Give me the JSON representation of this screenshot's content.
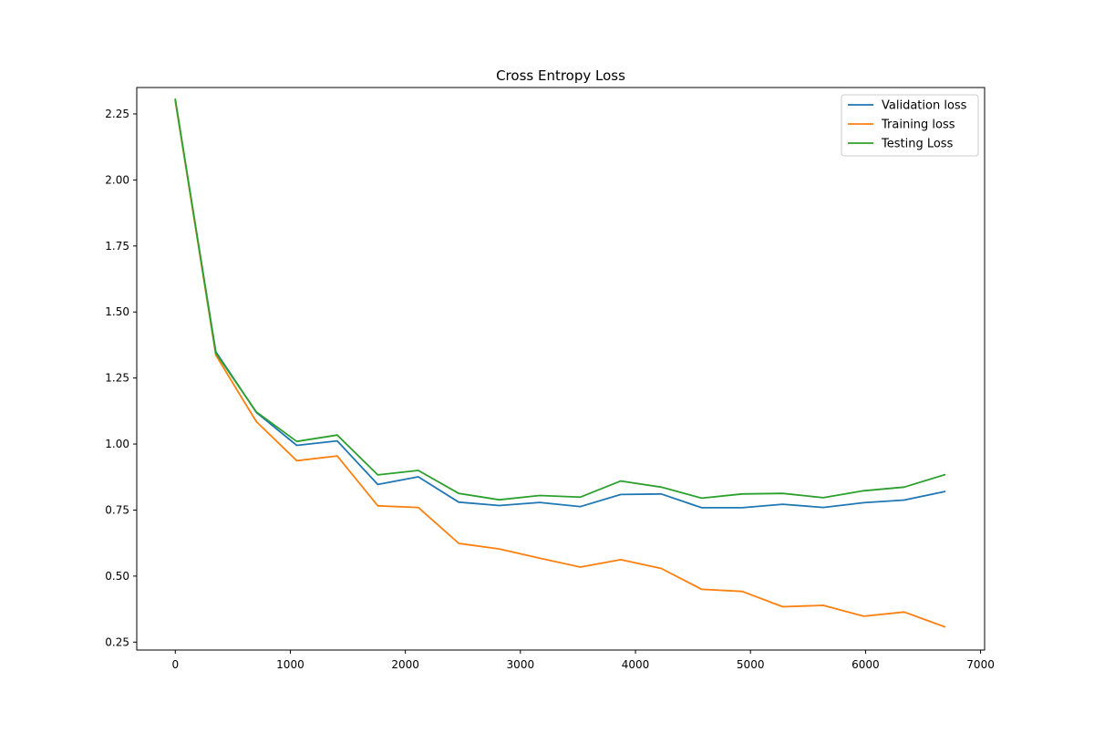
{
  "chart_data": {
    "type": "line",
    "title": "Cross Entropy Loss",
    "xlabel": "",
    "ylabel": "",
    "xlim": [
      -335,
      7035
    ],
    "ylim": [
      0.22,
      2.35
    ],
    "xticks": [
      0,
      1000,
      2000,
      3000,
      4000,
      5000,
      6000,
      7000
    ],
    "yticks": [
      0.25,
      0.5,
      0.75,
      1.0,
      1.25,
      1.5,
      1.75,
      2.0,
      2.25
    ],
    "grid": false,
    "legend_position": "top-right",
    "x": [
      0,
      352,
      704,
      1056,
      1408,
      1760,
      2112,
      2464,
      2816,
      3168,
      3520,
      3872,
      4224,
      4576,
      4928,
      5280,
      5632,
      5984,
      6336,
      6688
    ],
    "series": [
      {
        "name": "Validation loss",
        "color": "#1f77b4",
        "values": [
          2.3,
          1.35,
          1.12,
          0.995,
          1.012,
          0.847,
          0.876,
          0.78,
          0.767,
          0.779,
          0.763,
          0.809,
          0.811,
          0.759,
          0.759,
          0.772,
          0.76,
          0.778,
          0.788,
          0.82
        ]
      },
      {
        "name": "Training loss",
        "color": "#ff7f0e",
        "values": [
          2.3,
          1.337,
          1.085,
          0.937,
          0.955,
          0.766,
          0.76,
          0.624,
          0.603,
          0.568,
          0.534,
          0.562,
          0.529,
          0.45,
          0.442,
          0.384,
          0.389,
          0.348,
          0.364,
          0.308
        ]
      },
      {
        "name": "Testing Loss",
        "color": "#2ca02c",
        "values": [
          2.305,
          1.345,
          1.122,
          1.01,
          1.034,
          0.883,
          0.9,
          0.813,
          0.789,
          0.805,
          0.799,
          0.86,
          0.837,
          0.795,
          0.811,
          0.813,
          0.797,
          0.823,
          0.837,
          0.884
        ]
      }
    ]
  }
}
